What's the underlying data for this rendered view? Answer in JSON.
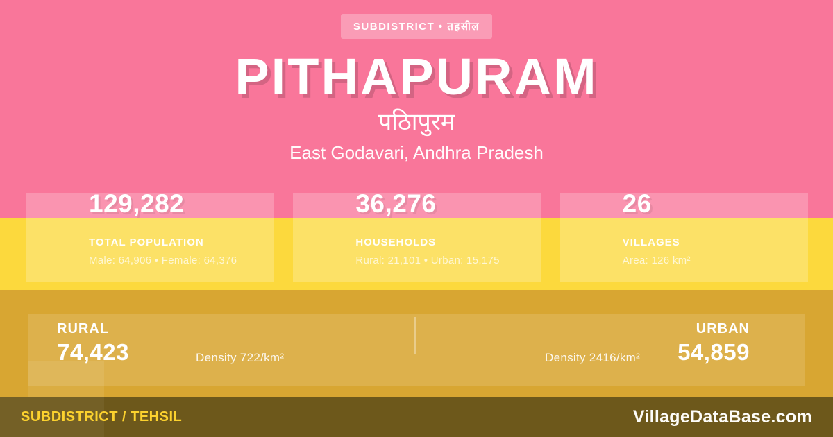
{
  "badge": {
    "label": "SUBDISTRICT • तहसील"
  },
  "header": {
    "title": "PITHAPURAM",
    "native_name": "पठिापुरम",
    "region": "East Godavari, Andhra Pradesh"
  },
  "stats": [
    {
      "value": "129,282",
      "label": "TOTAL POPULATION",
      "detail": "Male: 64,906 • Female: 64,376"
    },
    {
      "value": "36,276",
      "label": "HOUSEHOLDS",
      "detail": "Rural: 21,101 • Urban: 15,175"
    },
    {
      "value": "26",
      "label": "VILLAGES",
      "detail": "Area: 126 km²"
    }
  ],
  "split": {
    "rural": {
      "label": "RURAL",
      "value": "74,423",
      "density": "Density 722/km²"
    },
    "urban": {
      "label": "URBAN",
      "value": "54,859",
      "density": "Density 2416/km²"
    }
  },
  "footer": {
    "left": "SUBDISTRICT / TEHSIL",
    "right": "VillageDataBase.com"
  },
  "colors": {
    "pink": "#f9769a",
    "yellow": "#fcd93d",
    "gold": "#d8a632",
    "footer_olive": "#6d581b",
    "footer_text_yellow": "#fcd22e"
  }
}
